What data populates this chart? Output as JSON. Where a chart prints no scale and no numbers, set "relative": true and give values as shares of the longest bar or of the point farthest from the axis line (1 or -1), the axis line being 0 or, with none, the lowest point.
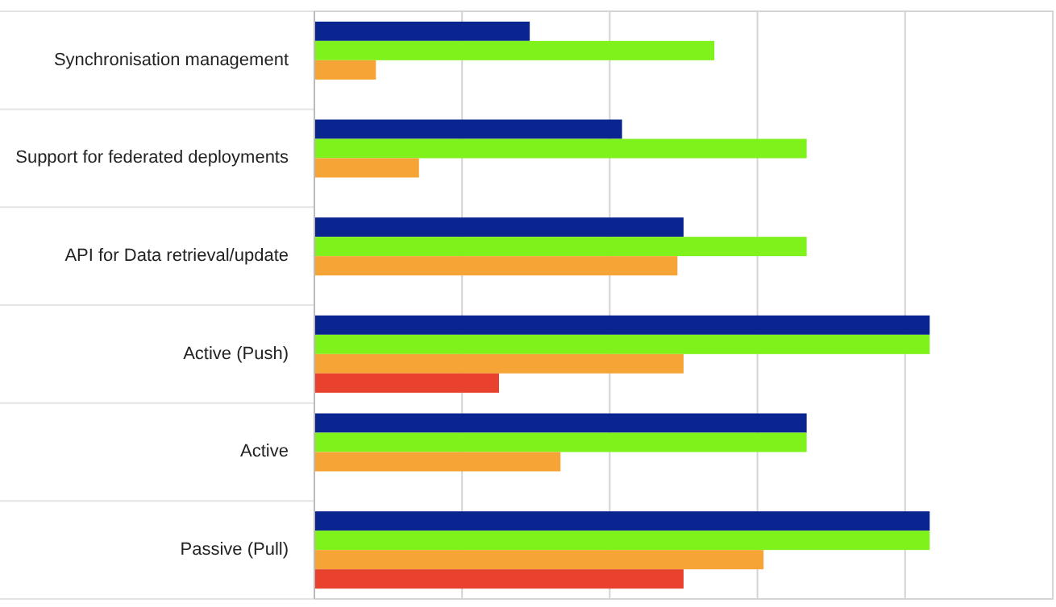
{
  "chart_data": {
    "type": "bar",
    "orientation": "horizontal",
    "relative": true,
    "grid": "x",
    "categories": [
      "Synchronisation management",
      "Support for federated deployments",
      "API for Data retrieval/update",
      "Active (Push)",
      "Active",
      "Passive (Pull)"
    ],
    "series": [
      {
        "color": "#0a2590",
        "values": [
          0.35,
          0.5,
          0.6,
          1,
          0.8,
          1
        ]
      },
      {
        "color": "#7ef21a",
        "values": [
          0.65,
          0.8,
          0.8,
          1,
          0.8,
          1
        ]
      },
      {
        "color": "#f5a435",
        "values": [
          0.1,
          0.17,
          0.59,
          0.6,
          0.4,
          0.73
        ]
      },
      {
        "color": "#e8412e",
        "values": [
          null,
          null,
          null,
          0.3,
          null,
          0.6
        ]
      }
    ]
  }
}
